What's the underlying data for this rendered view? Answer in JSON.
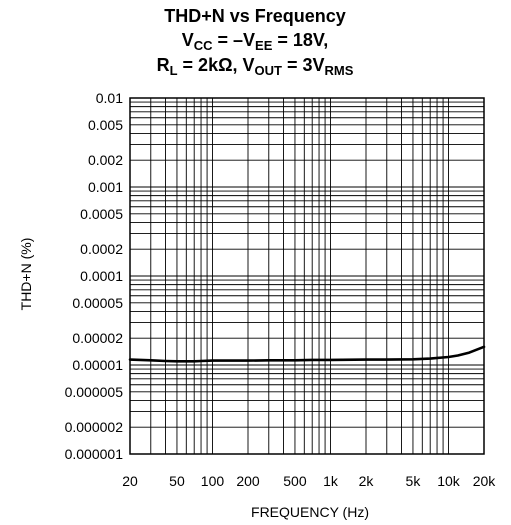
{
  "chart_data": {
    "type": "line",
    "title": {
      "line1": "THD+N vs Frequency",
      "line2": {
        "a": "V",
        "a_sub": "CC",
        "b": " = –V",
        "b_sub": "EE",
        "c": " = 18V,"
      },
      "line3": {
        "a": "R",
        "a_sub": "L",
        "b": " = 2kΩ, V",
        "b_sub": "OUT",
        "c": " = 3V",
        "c_sub": "RMS"
      }
    },
    "xlabel": "FREQUENCY (Hz)",
    "ylabel": "THD+N (%)",
    "x_scale": "log",
    "y_scale": "log",
    "xlim": [
      20,
      20000
    ],
    "ylim": [
      1e-06,
      0.01
    ],
    "grid": true,
    "x_ticks": [
      {
        "value": 20,
        "label": "20"
      },
      {
        "value": 50,
        "label": "50"
      },
      {
        "value": 100,
        "label": "100"
      },
      {
        "value": 200,
        "label": "200"
      },
      {
        "value": 500,
        "label": "500"
      },
      {
        "value": 1000,
        "label": "1k"
      },
      {
        "value": 2000,
        "label": "2k"
      },
      {
        "value": 5000,
        "label": "5k"
      },
      {
        "value": 10000,
        "label": "10k"
      },
      {
        "value": 20000,
        "label": "20k"
      }
    ],
    "y_ticks": [
      {
        "value": 0.01,
        "label": "0.01"
      },
      {
        "value": 0.005,
        "label": "0.005"
      },
      {
        "value": 0.002,
        "label": "0.002"
      },
      {
        "value": 0.001,
        "label": "0.001"
      },
      {
        "value": 0.0005,
        "label": "0.0005"
      },
      {
        "value": 0.0002,
        "label": "0.0002"
      },
      {
        "value": 0.0001,
        "label": "0.0001"
      },
      {
        "value": 5e-05,
        "label": "0.00005"
      },
      {
        "value": 2e-05,
        "label": "0.00002"
      },
      {
        "value": 1e-05,
        "label": "0.00001"
      },
      {
        "value": 5e-06,
        "label": "0.000005"
      },
      {
        "value": 2e-06,
        "label": "0.000002"
      },
      {
        "value": 1e-06,
        "label": "0.000001"
      }
    ],
    "series": [
      {
        "color": "#000000",
        "x": [
          20,
          30,
          40,
          50,
          60,
          70,
          80,
          100,
          150,
          200,
          300,
          500,
          700,
          1000,
          2000,
          3000,
          5000,
          7000,
          10000,
          12000,
          15000,
          20000
        ],
        "y": [
          1.15e-05,
          1.13e-05,
          1.11e-05,
          1.1e-05,
          1.1e-05,
          1.1e-05,
          1.11e-05,
          1.12e-05,
          1.12e-05,
          1.12e-05,
          1.13e-05,
          1.13e-05,
          1.14e-05,
          1.14e-05,
          1.15e-05,
          1.15e-05,
          1.16e-05,
          1.18e-05,
          1.23e-05,
          1.28e-05,
          1.38e-05,
          1.6e-05
        ]
      }
    ]
  }
}
